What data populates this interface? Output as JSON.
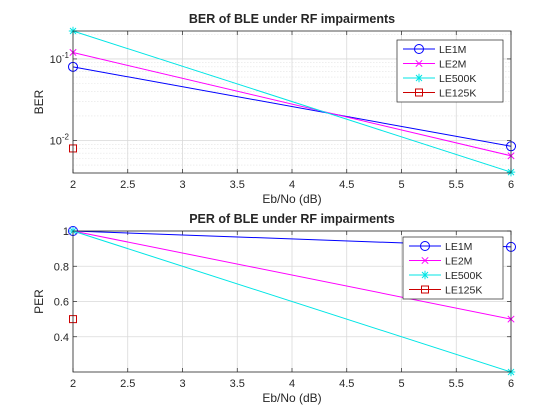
{
  "chart_data": [
    {
      "type": "line",
      "title": "BER of BLE under RF impairments",
      "xlabel": "Eb/No (dB)",
      "ylabel": "BER",
      "yscale": "log",
      "grid": true,
      "xlim": [
        2,
        6
      ],
      "ylim": [
        0.004,
        0.22
      ],
      "x_ticks": [
        "2",
        "2.5",
        "3",
        "3.5",
        "4",
        "4.5",
        "5",
        "5.5",
        "6"
      ],
      "y_ticks": [
        {
          "value": 0.1,
          "base": "10",
          "exp": "-1"
        },
        {
          "value": 0.01,
          "base": "10",
          "exp": "-2"
        }
      ],
      "legend_position": "top-right",
      "series": [
        {
          "name": "LE1M",
          "color": "#0000ff",
          "marker": "circle",
          "x": [
            2,
            6
          ],
          "y": [
            0.08,
            0.0085
          ]
        },
        {
          "name": "LE2M",
          "color": "#ff00ff",
          "marker": "x",
          "x": [
            2,
            6
          ],
          "y": [
            0.12,
            0.0065
          ]
        },
        {
          "name": "LE500K",
          "color": "#00e5e5",
          "marker": "asterisk",
          "x": [
            2,
            6
          ],
          "y": [
            0.22,
            0.0041
          ]
        },
        {
          "name": "LE125K",
          "color": "#cc0000",
          "marker": "square",
          "x": [
            2
          ],
          "y": [
            0.008
          ]
        }
      ]
    },
    {
      "type": "line",
      "title": "PER of BLE under RF impairments",
      "xlabel": "Eb/No (dB)",
      "ylabel": "PER",
      "yscale": "linear",
      "grid": true,
      "xlim": [
        2,
        6
      ],
      "ylim": [
        0.2,
        1
      ],
      "x_ticks": [
        "2",
        "2.5",
        "3",
        "3.5",
        "4",
        "4.5",
        "5",
        "5.5",
        "6"
      ],
      "y_ticks": [
        "0.4",
        "0.6",
        "0.8",
        "1"
      ],
      "legend_position": "right",
      "series": [
        {
          "name": "LE1M",
          "color": "#0000ff",
          "marker": "circle",
          "x": [
            2,
            6
          ],
          "y": [
            1.0,
            0.91
          ]
        },
        {
          "name": "LE2M",
          "color": "#ff00ff",
          "marker": "x",
          "x": [
            2,
            6
          ],
          "y": [
            1.0,
            0.5
          ]
        },
        {
          "name": "LE500K",
          "color": "#00e5e5",
          "marker": "asterisk",
          "x": [
            2,
            6
          ],
          "y": [
            1.0,
            0.2
          ]
        },
        {
          "name": "LE125K",
          "color": "#cc0000",
          "marker": "square",
          "x": [
            2
          ],
          "y": [
            0.5
          ]
        }
      ]
    }
  ]
}
